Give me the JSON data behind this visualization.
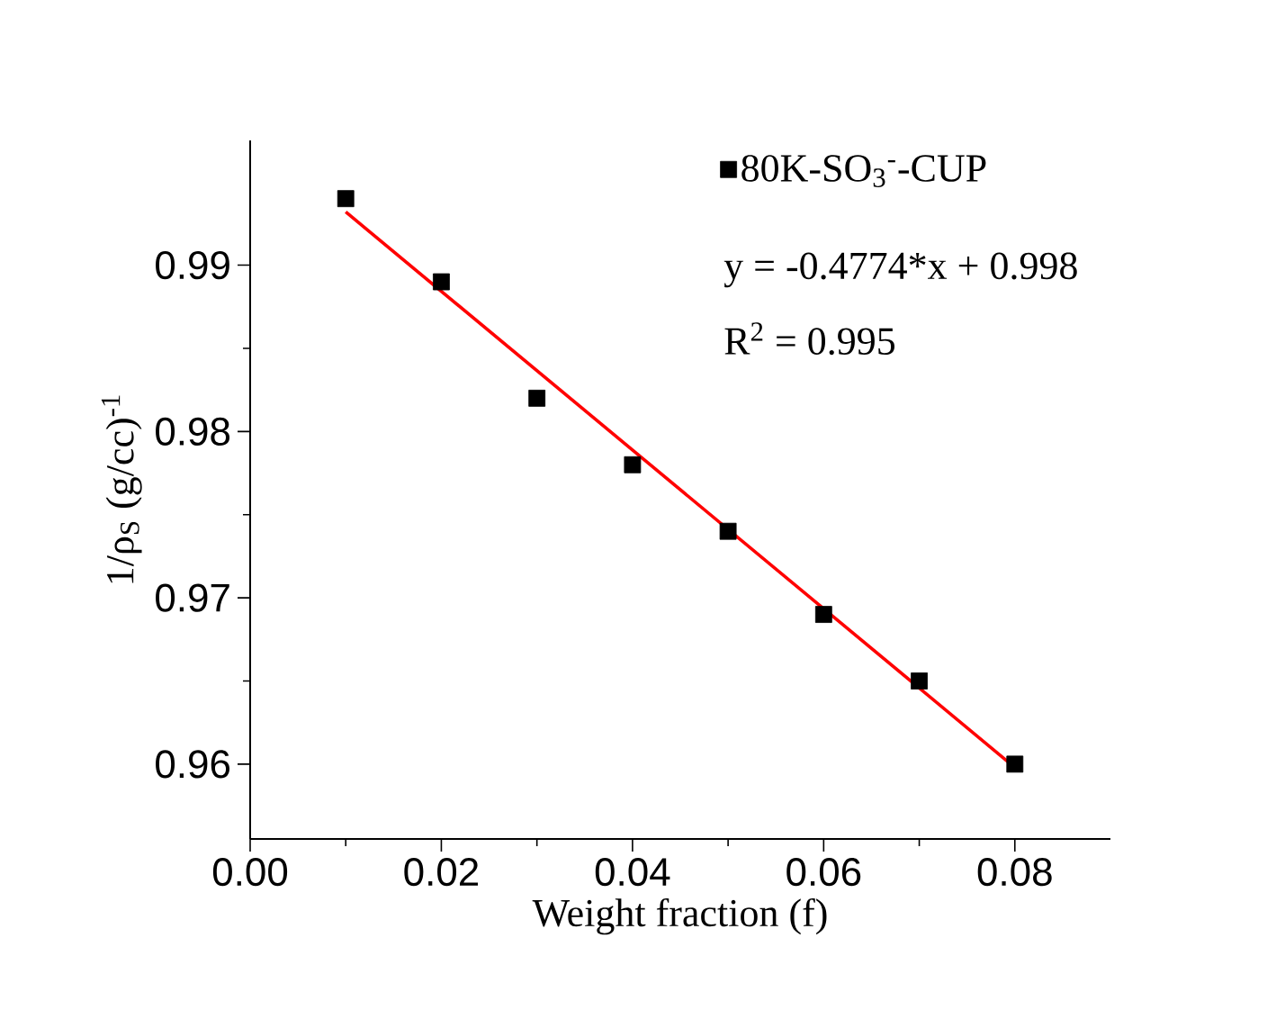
{
  "chart_data": {
    "type": "scatter",
    "xlabel": "Weight fraction (f)",
    "ylabel": "1/ρ$_{S}$ (g/cc)$^{-1}$",
    "x": [
      0.01,
      0.02,
      0.03,
      0.04,
      0.05,
      0.06,
      0.07,
      0.08
    ],
    "series": [
      {
        "name": "80K-SO$_{3}$$^{-}$-CUP",
        "color": "#000000",
        "marker": "square",
        "values": [
          0.994,
          0.989,
          0.982,
          0.978,
          0.974,
          0.969,
          0.965,
          0.96
        ]
      },
      {
        "type": "line",
        "color": "#ff0000",
        "x": [
          0.01,
          0.08
        ],
        "values": [
          0.9932,
          0.9598
        ]
      }
    ],
    "annotations": [
      "y = -0.4774*x + 0.998",
      "R$^{2}$ = 0.995"
    ],
    "xlim": [
      0,
      0.09
    ],
    "ylim": [
      0.9555,
      0.9975
    ],
    "xticks": [
      {
        "value": 0,
        "label": "0.00"
      },
      0.02,
      0.04,
      0.06,
      0.08
    ],
    "yticks": [
      0.96,
      0.97,
      0.98,
      0.99
    ],
    "legend": "top right",
    "grid": false
  }
}
